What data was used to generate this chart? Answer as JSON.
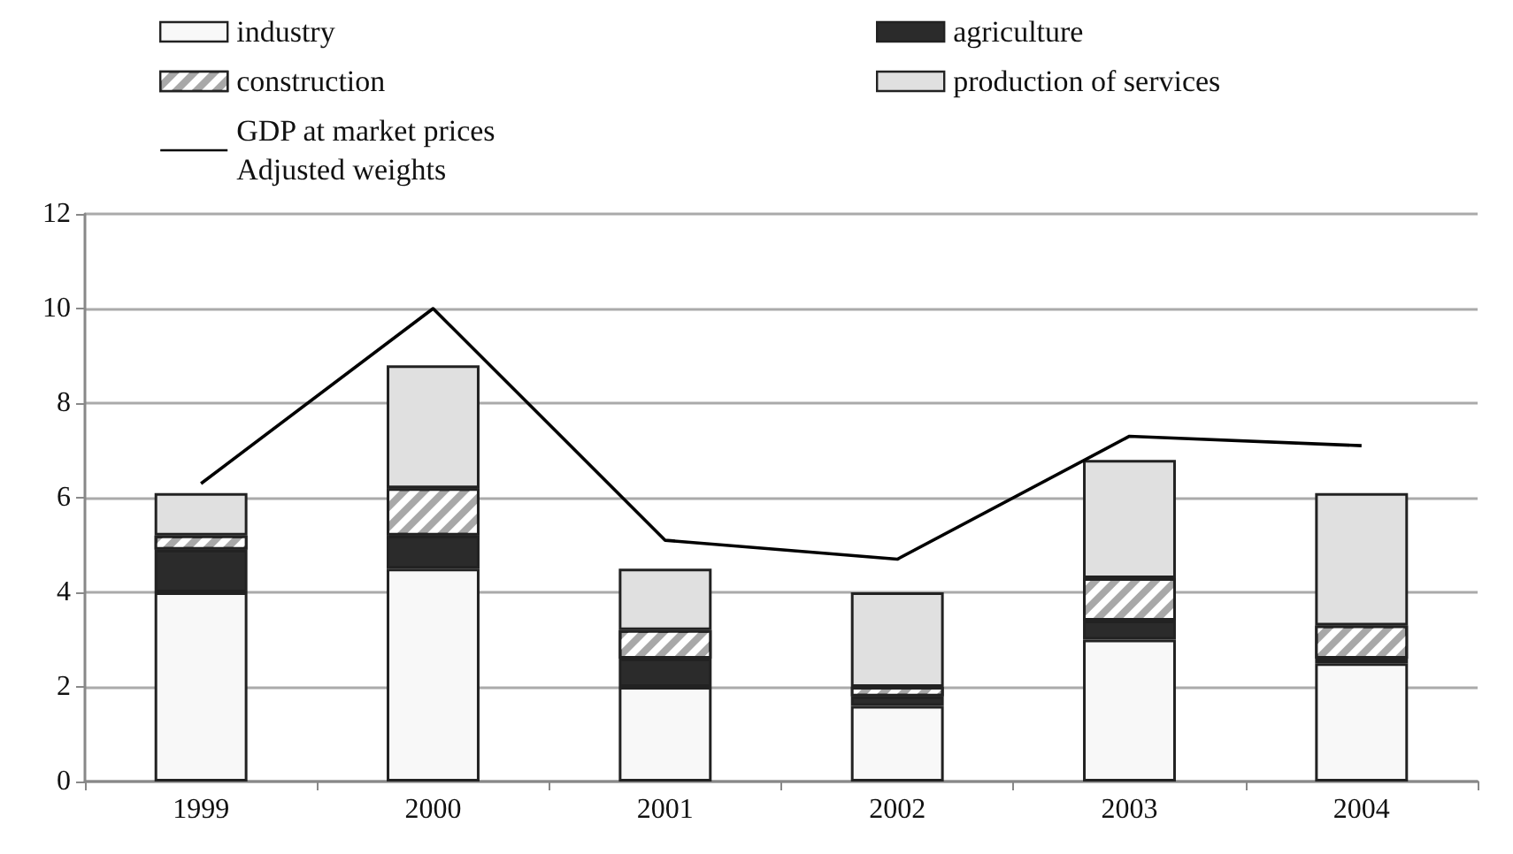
{
  "chart_data": {
    "type": "bar",
    "stacked": true,
    "categories": [
      "1999",
      "2000",
      "2001",
      "2002",
      "2003",
      "2004"
    ],
    "series": [
      {
        "name": "industry",
        "color": "#f8f8f8",
        "values": [
          4.0,
          4.5,
          2.0,
          1.6,
          3.0,
          2.5
        ]
      },
      {
        "name": "agriculture",
        "color": "#2b2b2b",
        "values": [
          0.9,
          0.7,
          0.6,
          0.2,
          0.4,
          0.1
        ]
      },
      {
        "name": "construction",
        "color": "#a8a8a8",
        "values": [
          0.3,
          1.0,
          0.6,
          0.2,
          0.9,
          0.7
        ]
      },
      {
        "name": "production of services",
        "color": "#e0e0e0",
        "values": [
          0.9,
          2.6,
          1.3,
          2.0,
          2.5,
          2.8
        ]
      },
      {
        "name": "GDP at market prices\nAdjusted weights",
        "type": "line",
        "color": "#000000",
        "marker": "none",
        "values": [
          6.3,
          10.0,
          5.1,
          4.7,
          7.3,
          7.1
        ]
      }
    ],
    "ylim": [
      0,
      12
    ],
    "yticks": [
      0,
      2,
      4,
      6,
      8,
      10,
      12
    ],
    "grid": "y",
    "legend": "top"
  }
}
